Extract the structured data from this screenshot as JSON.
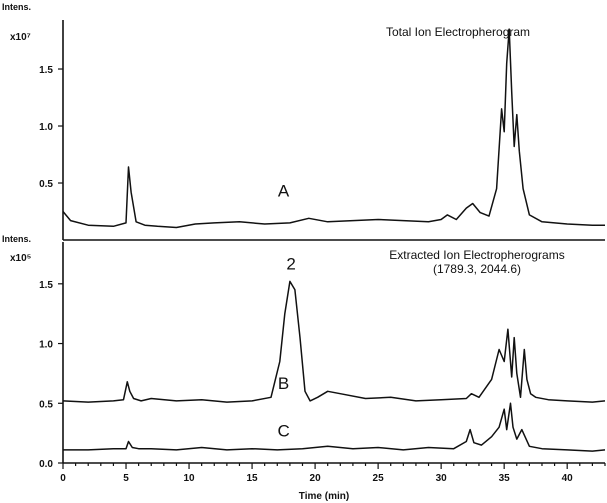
{
  "chart_data": [
    {
      "type": "line",
      "title": "Total Ion Electropherogram",
      "ylabel": "Intens.",
      "yscale": "x10⁷",
      "ylim": [
        0.0,
        1.93
      ],
      "yticks": [
        "0.5",
        "1.0",
        "1.5"
      ],
      "xlim": [
        0,
        43
      ],
      "annotations": [
        {
          "text": "A",
          "x": 17.5,
          "y": 0.38
        }
      ],
      "series": [
        {
          "x": [
            0,
            0.6,
            2,
            4,
            5.0,
            5.2,
            5.4,
            5.8,
            6.5,
            7.5,
            9,
            10.5,
            12,
            14,
            16,
            18,
            19.5,
            21,
            23,
            25,
            27,
            29,
            30,
            30.5,
            31.2,
            32,
            32.5,
            33.1,
            33.8,
            34.4,
            34.8,
            35.0,
            35.2,
            35.4,
            35.6,
            35.8,
            36.0,
            36.2,
            36.5,
            37.0,
            38,
            40,
            42,
            43
          ],
          "values": [
            0.25,
            0.17,
            0.13,
            0.12,
            0.15,
            0.64,
            0.42,
            0.16,
            0.13,
            0.12,
            0.11,
            0.14,
            0.15,
            0.16,
            0.14,
            0.15,
            0.19,
            0.16,
            0.17,
            0.18,
            0.17,
            0.16,
            0.18,
            0.22,
            0.18,
            0.28,
            0.32,
            0.24,
            0.21,
            0.45,
            1.15,
            0.95,
            1.55,
            1.85,
            1.3,
            0.82,
            1.1,
            0.78,
            0.45,
            0.22,
            0.16,
            0.14,
            0.13,
            0.13
          ]
        }
      ]
    },
    {
      "type": "line",
      "title": "Extracted Ion Electropherograms",
      "subtitle": "(1789.3, 2044.6)",
      "ylabel": "Intens.",
      "yscale": "x10⁵",
      "ylim": [
        0.0,
        1.85
      ],
      "yticks": [
        "0.0",
        "0.5",
        "1.0",
        "1.5"
      ],
      "xlabel": "Time (min)",
      "xlim": [
        0,
        43
      ],
      "xticks": [
        "0",
        "5",
        "10",
        "15",
        "20",
        "25",
        "30",
        "35",
        "40"
      ],
      "annotations": [
        {
          "text": "2",
          "x": 18.1,
          "y": 1.62
        },
        {
          "text": "B",
          "x": 17.5,
          "y": 0.62
        },
        {
          "text": "C",
          "x": 17.5,
          "y": 0.22
        }
      ],
      "series": [
        {
          "x": [
            0,
            2,
            4,
            4.8,
            5.1,
            5.3,
            5.6,
            6.2,
            7,
            9,
            11,
            13,
            15,
            16.5,
            17.2,
            17.6,
            18.0,
            18.4,
            18.8,
            19.2,
            19.6,
            20.2,
            21,
            22,
            24,
            26,
            28,
            30,
            32,
            32.4,
            33,
            34,
            34.6,
            35.0,
            35.3,
            35.6,
            35.8,
            36.0,
            36.3,
            36.6,
            36.8,
            37.1,
            37.5,
            38.5,
            40,
            42,
            43
          ],
          "values": [
            0.52,
            0.51,
            0.52,
            0.53,
            0.68,
            0.6,
            0.54,
            0.52,
            0.54,
            0.52,
            0.53,
            0.51,
            0.52,
            0.55,
            0.85,
            1.25,
            1.52,
            1.45,
            1.05,
            0.6,
            0.52,
            0.55,
            0.6,
            0.58,
            0.54,
            0.55,
            0.52,
            0.53,
            0.54,
            0.58,
            0.55,
            0.7,
            0.95,
            0.85,
            1.12,
            0.72,
            1.05,
            0.75,
            0.55,
            0.95,
            0.7,
            0.58,
            0.55,
            0.53,
            0.52,
            0.51,
            0.52
          ]
        },
        {
          "x": [
            0,
            2,
            4,
            5.0,
            5.2,
            5.5,
            6,
            7,
            9,
            11,
            13,
            15,
            17,
            19,
            21,
            23,
            25,
            27,
            29,
            31,
            32.0,
            32.3,
            32.6,
            33.2,
            34,
            34.6,
            35.0,
            35.2,
            35.5,
            35.7,
            36.0,
            36.4,
            37,
            38,
            40,
            42,
            43
          ],
          "values": [
            0.11,
            0.11,
            0.12,
            0.12,
            0.18,
            0.13,
            0.12,
            0.12,
            0.11,
            0.13,
            0.11,
            0.12,
            0.11,
            0.12,
            0.14,
            0.12,
            0.13,
            0.11,
            0.13,
            0.12,
            0.18,
            0.28,
            0.17,
            0.15,
            0.22,
            0.3,
            0.45,
            0.28,
            0.5,
            0.3,
            0.2,
            0.28,
            0.14,
            0.12,
            0.11,
            0.1,
            0.11
          ]
        }
      ]
    }
  ]
}
